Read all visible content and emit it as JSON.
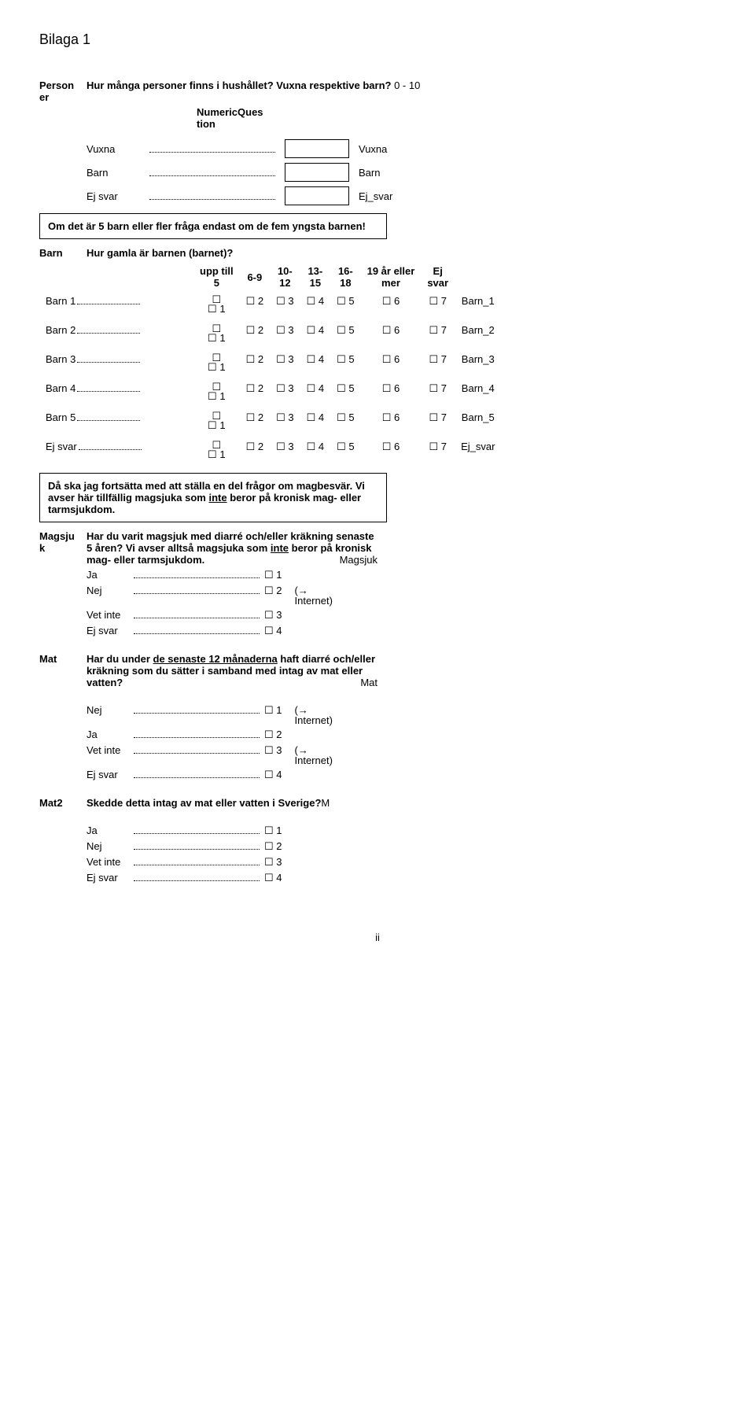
{
  "appendix": "Bilaga 1",
  "personer": {
    "code": "Person\ner",
    "question": "Hur många personer finns i hushållet? Vuxna respektive barn?",
    "range": "0 - 10",
    "type_label": "NumericQues\ntion",
    "rows": [
      {
        "label": "Vuxna",
        "field": "Vuxna"
      },
      {
        "label": "Barn",
        "field": "Barn"
      },
      {
        "label": "Ej svar",
        "field": "Ej_svar"
      }
    ],
    "note": "Om det är 5 barn eller fler fråga endast om de fem yngsta barnen!"
  },
  "barn": {
    "code": "Barn",
    "question": "Hur gamla är barnen (barnet)?",
    "columns": [
      "upp till 5",
      "6-9",
      "10-12",
      "13-15",
      "16-18",
      "19 år eller mer",
      "Ej svar"
    ],
    "rows": [
      {
        "label": "Barn 1",
        "code": "Barn_1"
      },
      {
        "label": "Barn 2",
        "code": "Barn_2"
      },
      {
        "label": "Barn 3",
        "code": "Barn_3"
      },
      {
        "label": "Barn 4",
        "code": "Barn_4"
      },
      {
        "label": "Barn 5",
        "code": "Barn_5"
      },
      {
        "label": "Ej svar",
        "code": "Ej_svar"
      }
    ],
    "values": [
      "1",
      "2",
      "3",
      "4",
      "5",
      "6",
      "7"
    ]
  },
  "intro_box": {
    "text_before": "Då ska jag fortsätta med att ställa en del frågor om magbesvär. Vi avser här tillfällig magsjuka som ",
    "inte": "inte",
    "text_after": " beror på kronisk mag- eller tarmsjukdom."
  },
  "magsjuk": {
    "code": "Magsju\nk",
    "text_before": "Har du varit magsjuk med diarré och/eller kräkning senaste 5 åren? Vi avser alltså magsjuka som ",
    "inte": "inte",
    "text_after": " beror på kronisk mag- eller tarmsjukdom.",
    "right_label": "Magsjuk",
    "answers": [
      {
        "label": "Ja",
        "value": "1",
        "goto": ""
      },
      {
        "label": "Nej",
        "value": "2",
        "goto": "(→ Internet)"
      },
      {
        "label": "Vet inte",
        "value": "3",
        "goto": ""
      },
      {
        "label": "Ej svar",
        "value": "4",
        "goto": ""
      }
    ]
  },
  "mat": {
    "code": "Mat",
    "text_before": "Har du under ",
    "underline": "de senaste 12 månaderna",
    "text_after": " haft diarré och/eller kräkning som du sätter i samband med intag av mat eller vatten?",
    "right_label": "Mat",
    "answers": [
      {
        "label": "Nej",
        "value": "1",
        "goto": "(→ Internet)"
      },
      {
        "label": "Ja",
        "value": "2",
        "goto": ""
      },
      {
        "label": "Vet inte",
        "value": "3",
        "goto": "(→ Internet)"
      },
      {
        "label": "Ej svar",
        "value": "4",
        "goto": ""
      }
    ]
  },
  "mat2": {
    "code": "Mat2",
    "question": "Skedde detta intag av mat eller vatten i Sverige?",
    "right_label": "M",
    "answers": [
      {
        "label": "Ja",
        "value": "1"
      },
      {
        "label": "Nej",
        "value": "2"
      },
      {
        "label": "Vet inte",
        "value": "3"
      },
      {
        "label": "Ej svar",
        "value": "4"
      }
    ]
  },
  "checkbox_glyph": "☐",
  "page_number": "ii"
}
